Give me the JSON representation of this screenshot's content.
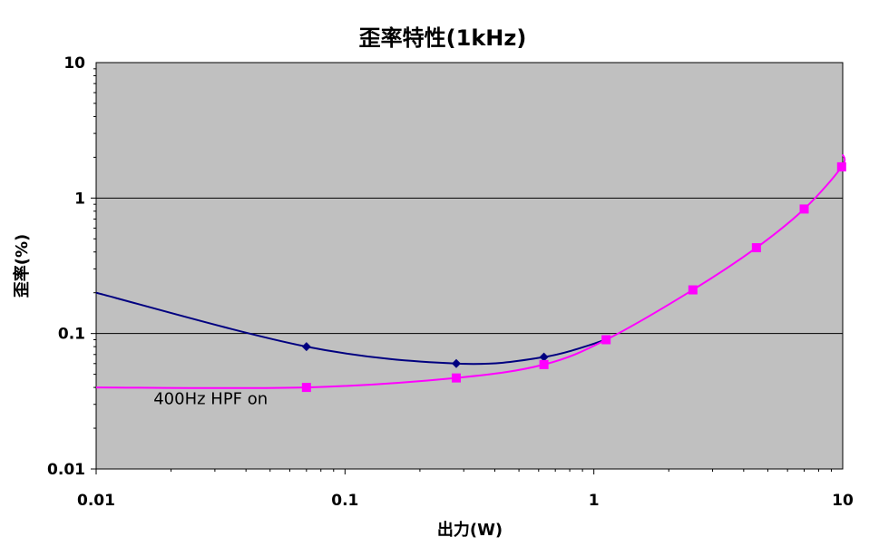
{
  "chart_data": {
    "type": "line",
    "title": "歪率特性(1kHz)",
    "xlabel": "出力(W)",
    "ylabel": "歪率(%)",
    "x_scale": "log",
    "y_scale": "log",
    "xlim": [
      0.01,
      10
    ],
    "ylim": [
      0.01,
      10
    ],
    "x_ticks": [
      {
        "value": 0.01,
        "label": "0.01"
      },
      {
        "value": 0.1,
        "label": "0.1"
      },
      {
        "value": 1,
        "label": "1"
      },
      {
        "value": 10,
        "label": "10"
      }
    ],
    "y_ticks": [
      {
        "value": 10,
        "label": "10"
      },
      {
        "value": 1,
        "label": "1"
      },
      {
        "value": 0.1,
        "label": "0.1"
      },
      {
        "value": 0.01,
        "label": "0.01"
      }
    ],
    "grid": "horizontal major",
    "plot_background": "#c0c0c0",
    "series": [
      {
        "color": "#000080",
        "marker": "diamond",
        "line_start": {
          "x": 0.01,
          "y": 0.2
        },
        "points": [
          {
            "x": 0.07,
            "y": 0.08
          },
          {
            "x": 0.28,
            "y": 0.06
          },
          {
            "x": 0.63,
            "y": 0.067
          },
          {
            "x": 1.12,
            "y": 0.09
          }
        ]
      },
      {
        "color": "#ff00ff",
        "marker": "square",
        "line_start": {
          "x": 0.01,
          "y": 0.04
        },
        "line_end": {
          "x": 10,
          "y": 2.1
        },
        "points": [
          {
            "x": 0.07,
            "y": 0.04
          },
          {
            "x": 0.28,
            "y": 0.047
          },
          {
            "x": 0.63,
            "y": 0.059
          },
          {
            "x": 1.12,
            "y": 0.09
          },
          {
            "x": 2.5,
            "y": 0.21
          },
          {
            "x": 4.5,
            "y": 0.43
          },
          {
            "x": 7.0,
            "y": 0.83
          },
          {
            "x": 9.9,
            "y": 1.7
          }
        ]
      }
    ],
    "annotations": [
      {
        "text": "400Hz HPF on",
        "x": 0.017,
        "y": 0.03
      }
    ]
  }
}
